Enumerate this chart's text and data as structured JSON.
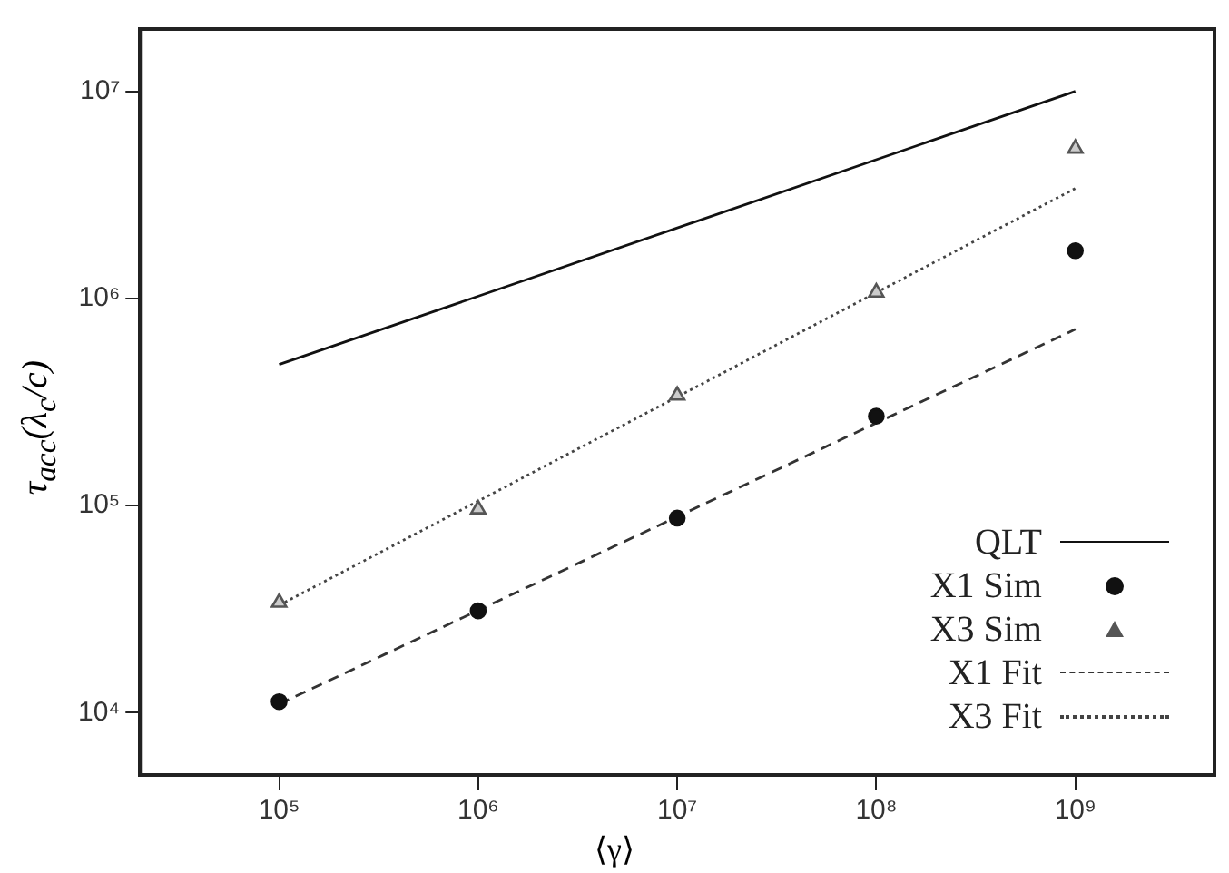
{
  "chart_data": {
    "type": "scatter",
    "xlabel": "⟨γ⟩",
    "ylabel": "τ$_{acc}$(λ$_{c}$/c)",
    "log": "xy",
    "grid": false,
    "legend": "bottom right",
    "xlim": [
      20000,
      5000000000
    ],
    "ylim": [
      5000,
      20000000
    ],
    "xticks": [
      {
        "value": 100000,
        "label": "10⁵"
      },
      {
        "value": 1000000,
        "label": "10⁶"
      },
      {
        "value": 10000000,
        "label": "10⁷"
      },
      {
        "value": 100000000,
        "label": "10⁸"
      },
      {
        "value": 1000000000,
        "label": "10⁹"
      }
    ],
    "yticks": [
      {
        "value": 10000,
        "label": "10⁴"
      },
      {
        "value": 100000,
        "label": "10⁵"
      },
      {
        "value": 1000000,
        "label": "10⁶"
      },
      {
        "value": 10000000,
        "label": "10⁷"
      }
    ],
    "series": [
      {
        "name": "QLT",
        "type": "line",
        "color": "#111111",
        "line_style": "solid",
        "marker": "none",
        "x": [
          100000,
          1000000000
        ],
        "values": [
          480000,
          10000000
        ]
      },
      {
        "name": "X1 Sim",
        "color": "#111111",
        "marker": "circle",
        "x": [
          100000,
          1000000,
          10000000,
          100000000,
          1000000000
        ],
        "values": [
          11300,
          31000,
          87000,
          270000,
          1700000
        ]
      },
      {
        "name": "X3 Sim",
        "color": "#555555",
        "marker": "triangle",
        "x": [
          100000,
          1000000,
          10000000,
          100000000,
          1000000000
        ],
        "values": [
          34000,
          96000,
          340000,
          1070000,
          5300000
        ]
      },
      {
        "name": "X1 Fit",
        "type": "line",
        "color": "#333333",
        "line_style": "dashed",
        "marker": "none",
        "x": [
          100000,
          1000000000
        ],
        "values": [
          11000,
          710000
        ]
      },
      {
        "name": "X3 Fit",
        "type": "line",
        "color": "#444444",
        "line_style": "dotted",
        "marker": "none",
        "x": [
          100000,
          1000000000
        ],
        "values": [
          33000,
          3400000
        ]
      }
    ]
  }
}
